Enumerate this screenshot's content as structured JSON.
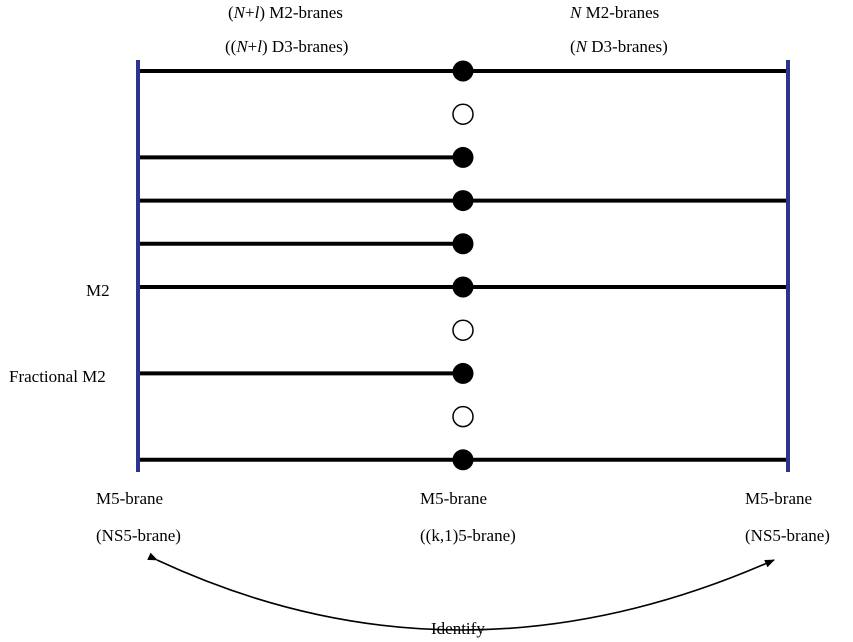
{
  "top_labels": {
    "left_line1": {
      "pre": "(",
      "n": "N",
      "plus": "+",
      "l": "l",
      "post": ") M2-branes"
    },
    "left_line2": {
      "pre": "((",
      "n": "N",
      "plus": "+",
      "l": "l",
      "post": ") D3-branes)"
    },
    "right_line1": {
      "n": "N",
      "post": " M2-branes"
    },
    "right_line2": {
      "pre": "(",
      "n": "N",
      "post": " D3-branes)"
    }
  },
  "side_labels": {
    "m2": "M2",
    "fractional_m2": "Fractional M2"
  },
  "bottom_labels": {
    "left_name": "M5-brane",
    "left_type": "(NS5-brane)",
    "center_name": "M5-brane",
    "center_type": "((k,1)5-brane)",
    "right_name": "M5-brane",
    "right_type": "(NS5-brane)"
  },
  "identify_label": "Identify",
  "colors": {
    "boundary": "#2b3590",
    "brane": "#000000",
    "filled_node": "#000000",
    "open_node": "#ffffff"
  },
  "rows": [
    {
      "node": "filled",
      "left": true,
      "right": true
    },
    {
      "node": "open",
      "left": false,
      "right": false
    },
    {
      "node": "filled",
      "left": true,
      "right": false
    },
    {
      "node": "filled",
      "left": true,
      "right": true
    },
    {
      "node": "filled",
      "left": true,
      "right": false
    },
    {
      "node": "filled",
      "left": true,
      "right": true
    },
    {
      "node": "open",
      "left": false,
      "right": false
    },
    {
      "node": "filled",
      "left": true,
      "right": false
    },
    {
      "node": "open",
      "left": false,
      "right": false
    },
    {
      "node": "filled",
      "left": true,
      "right": true
    }
  ]
}
